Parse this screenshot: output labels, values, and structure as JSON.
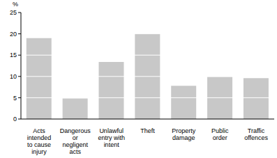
{
  "chart_data": {
    "type": "bar",
    "y_label": "%",
    "categories": [
      "Acts intended to cause injury",
      "Dangerous or negligent acts",
      "Unlawful entry with intent",
      "Theft",
      "Property damage",
      "Public order",
      "Traffic offences"
    ],
    "values": [
      19,
      4.8,
      13.4,
      20.1,
      7.8,
      9.9,
      9.6
    ],
    "color": "#c8c8c8",
    "ylim": [
      0,
      25
    ],
    "yticks": [
      0,
      5,
      10,
      15,
      20,
      25
    ],
    "grid": true
  }
}
